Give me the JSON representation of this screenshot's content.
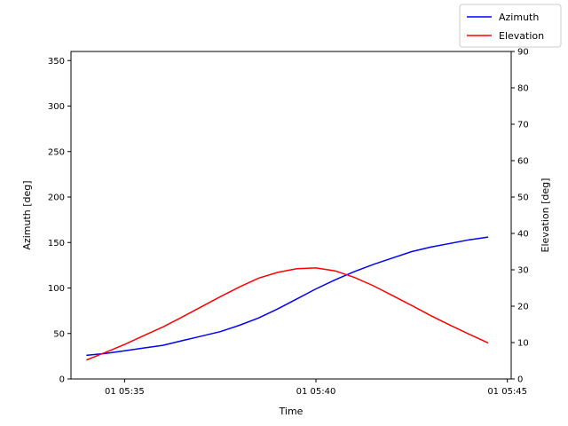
{
  "chart_data": {
    "type": "line",
    "xlabel": "Time",
    "x_tick_labels": [
      "01 05:35",
      "01 05:40",
      "01 05:45"
    ],
    "x_tick_minutes": [
      35,
      40,
      45
    ],
    "xlim_minutes": [
      33.6,
      45.1
    ],
    "x_minutes": [
      34.0,
      34.5,
      35.0,
      35.5,
      36.0,
      36.5,
      37.0,
      37.5,
      38.0,
      38.5,
      39.0,
      39.5,
      40.0,
      40.5,
      41.0,
      41.5,
      42.0,
      42.5,
      43.0,
      43.5,
      44.0,
      44.5
    ],
    "left_axis": {
      "label": "Azimuth [deg]",
      "ylim": [
        0,
        360
      ],
      "ticks": [
        0,
        50,
        100,
        150,
        200,
        250,
        300,
        350
      ]
    },
    "right_axis": {
      "label": "Elevation [deg]",
      "ylim": [
        0,
        90
      ],
      "ticks": [
        0,
        10,
        20,
        30,
        40,
        50,
        60,
        70,
        80,
        90
      ]
    },
    "series": [
      {
        "name": "Azimuth",
        "axis": "left",
        "color": "#0000ff",
        "values": [
          26,
          28,
          31,
          34,
          37,
          42,
          47,
          52,
          59,
          67,
          77,
          88,
          99,
          109,
          118,
          126,
          133,
          140,
          145,
          149,
          153,
          156
        ]
      },
      {
        "name": "Elevation",
        "axis": "right",
        "color": "#ff0000",
        "values": [
          5.2,
          7.3,
          9.5,
          11.9,
          14.3,
          17.0,
          19.8,
          22.6,
          25.3,
          27.7,
          29.3,
          30.3,
          30.5,
          29.7,
          27.9,
          25.6,
          22.9,
          20.2,
          17.4,
          14.8,
          12.3,
          9.9
        ]
      }
    ],
    "legend_position": "top-right",
    "grid": false
  }
}
